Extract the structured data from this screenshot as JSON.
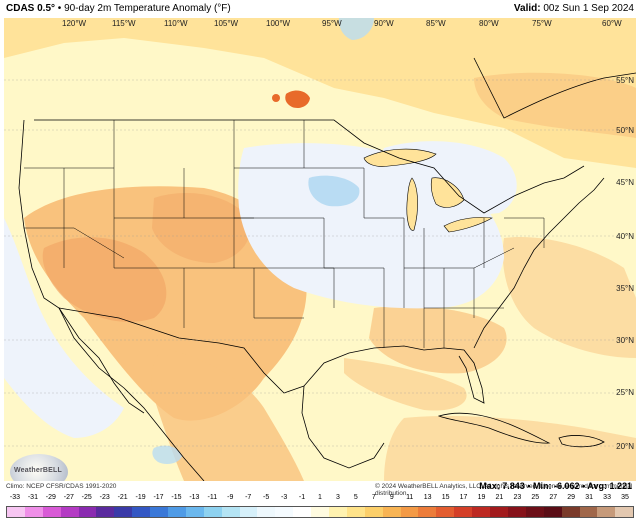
{
  "header": {
    "model": "CDAS 0.5°",
    "sep": " • ",
    "title": "90-day 2m Temperature Anomaly (°F)",
    "valid_label": "Valid:",
    "valid_value": " 00z Sun 1 Sep 2024"
  },
  "map": {
    "lon_labels": [
      "120°W",
      "115°W",
      "110°W",
      "105°W",
      "100°W",
      "95°W",
      "90°W",
      "85°W",
      "80°W",
      "75°W",
      "60°W"
    ],
    "lat_labels": [
      "55°N",
      "50°N",
      "45°N",
      "40°N",
      "35°N",
      "30°N",
      "25°N",
      "20°N"
    ],
    "land_color": "#fff8c8",
    "warm_color": "#ffe39a",
    "warmer_color": "#f9c27d",
    "hot_color": "#f2a666",
    "cool_color": "#eef3fb",
    "cold_color": "#b9dcf3",
    "spot_color": "#e86a2a"
  },
  "logo": {
    "text": "WeatherBELL"
  },
  "footer": {
    "source": "Climo: NCEP CFSR/CDAS 1991-2020",
    "copyright": "© 2024 WeatherBELL Analytics, LLC. All rights reserved. License required for commercial distribution."
  },
  "stats": {
    "max": "Max: 7.843",
    "min": "Min: -6.062",
    "avg": "Avg: 1.221"
  },
  "colorbar": {
    "labels": [
      "-33",
      "-31",
      "-29",
      "-27",
      "-25",
      "-23",
      "-21",
      "-19",
      "-17",
      "-15",
      "-13",
      "-11",
      "-9",
      "-7",
      "-5",
      "-3",
      "-1",
      "1",
      "3",
      "5",
      "7",
      "9",
      "11",
      "13",
      "15",
      "17",
      "19",
      "21",
      "23",
      "25",
      "27",
      "29",
      "31",
      "33",
      "35"
    ],
    "colors": [
      "#f7c6f2",
      "#ef8fe8",
      "#d85ad6",
      "#b43bc4",
      "#8a2bb0",
      "#5a2a9e",
      "#3a3aa8",
      "#3357c4",
      "#3a78d8",
      "#4f9be6",
      "#6bb8ee",
      "#8ed2f0",
      "#b4e4f4",
      "#d6f0fa",
      "#eef8fd",
      "#f5fbff",
      "#ffffff",
      "#fffbe0",
      "#fff2b0",
      "#ffe38a",
      "#fccf6a",
      "#f8b454",
      "#f39a46",
      "#ec7c3a",
      "#e35d30",
      "#d43f28",
      "#bd2922",
      "#a21a1c",
      "#86121a",
      "#6c0f18",
      "#5a0d16",
      "#7a3a2a",
      "#a0674a",
      "#c69a7a",
      "#e3c8b0"
    ]
  }
}
